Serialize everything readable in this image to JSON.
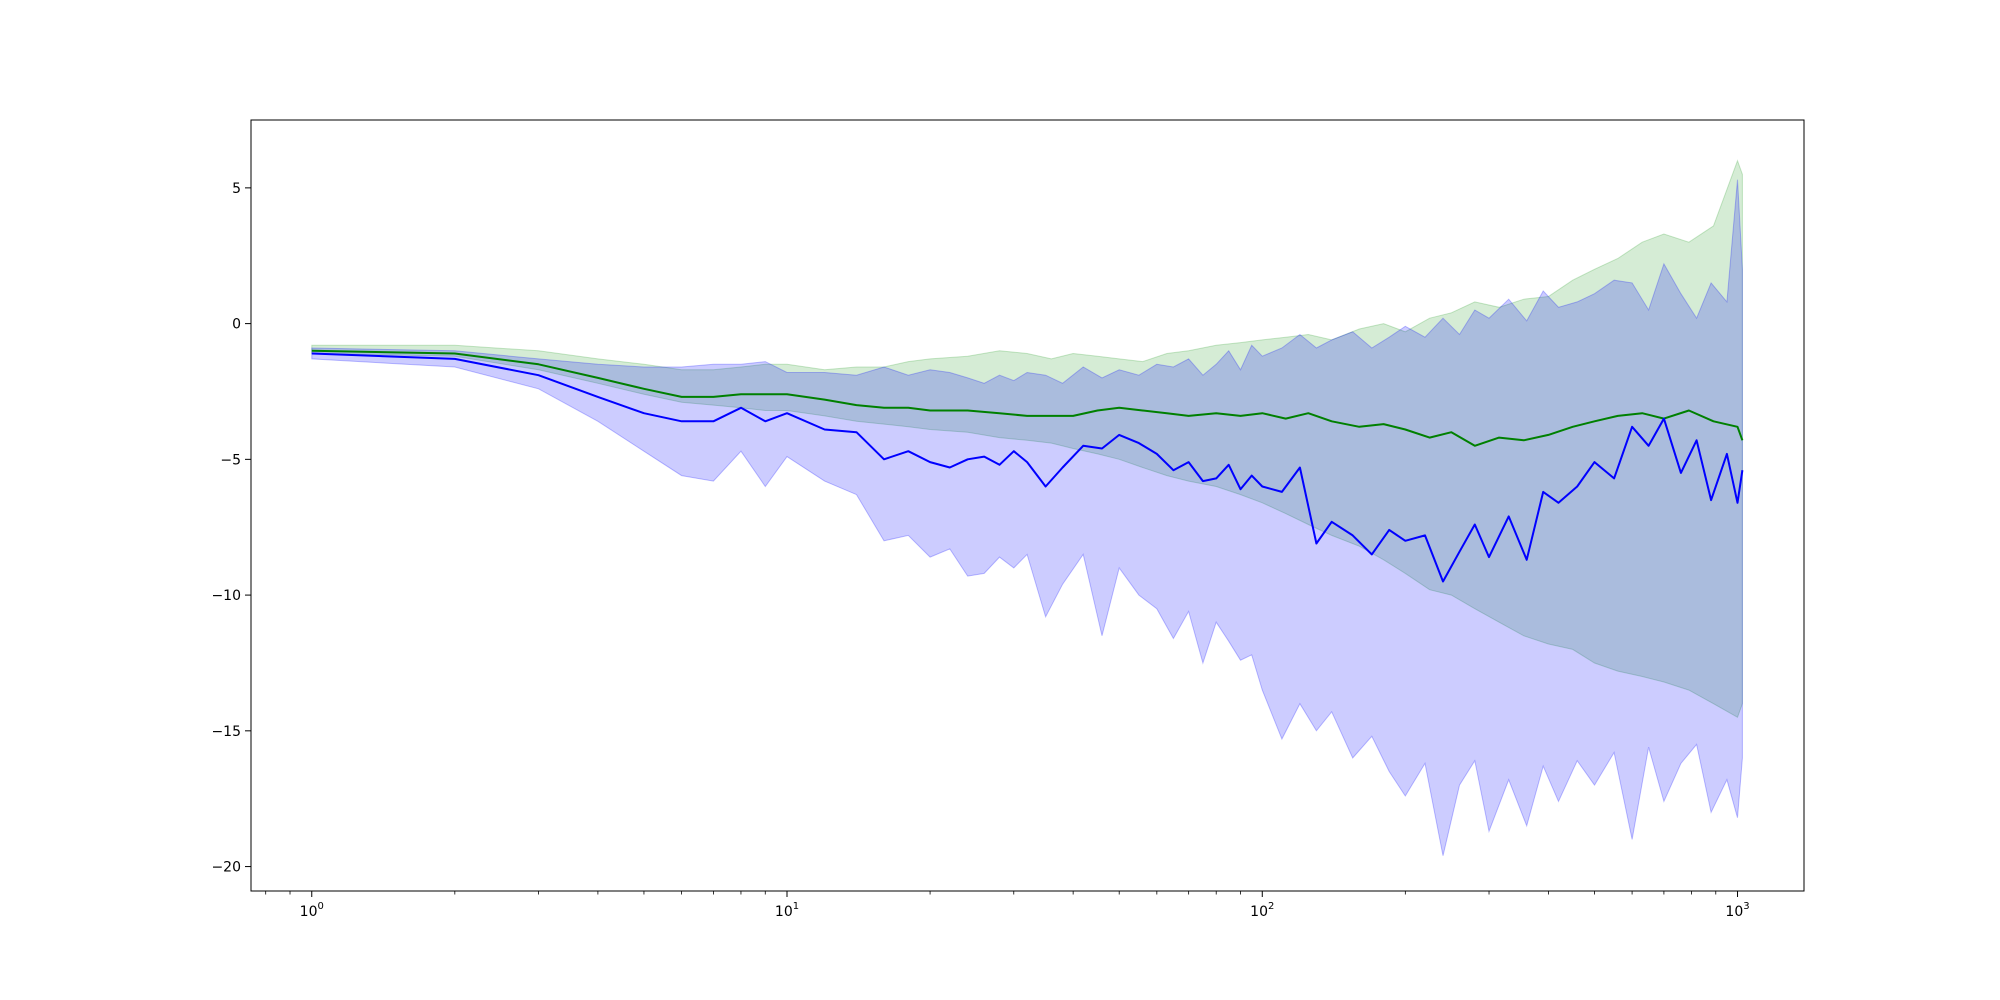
{
  "chart_data": {
    "type": "line",
    "title": "",
    "xlabel": "",
    "ylabel": "",
    "xscale": "log",
    "xlim": [
      0.745,
      1380
    ],
    "ylim": [
      -20.9,
      7.5
    ],
    "grid": false,
    "legend": "none",
    "x_ticks": [
      {
        "value": 1,
        "base": "10",
        "exp": "0"
      },
      {
        "value": 10,
        "base": "10",
        "exp": "1"
      },
      {
        "value": 100,
        "base": "10",
        "exp": "2"
      },
      {
        "value": 1000,
        "base": "10",
        "exp": "3"
      }
    ],
    "y_ticks": [
      {
        "value": 5,
        "label": "5"
      },
      {
        "value": 0,
        "label": "0"
      },
      {
        "value": -5,
        "label": "−5"
      },
      {
        "value": -10,
        "label": "−10"
      },
      {
        "value": -15,
        "label": "−15"
      },
      {
        "value": -20,
        "label": "−20"
      }
    ],
    "series": [
      {
        "color": "#008000",
        "band_color": "#2ca02c",
        "x": [
          1,
          2,
          3,
          4,
          5,
          6,
          7,
          8,
          9,
          10,
          12,
          14,
          16,
          18,
          20,
          24,
          28,
          32,
          36,
          40,
          45,
          50,
          56,
          63,
          70,
          80,
          90,
          100,
          112,
          125,
          140,
          160,
          180,
          200,
          225,
          250,
          280,
          315,
          355,
          400,
          450,
          500,
          560,
          630,
          700,
          790,
          890,
          1000,
          1024
        ],
        "y": [
          -1.0,
          -1.1,
          -1.5,
          -2.0,
          -2.4,
          -2.7,
          -2.7,
          -2.6,
          -2.6,
          -2.6,
          -2.8,
          -3.0,
          -3.1,
          -3.1,
          -3.2,
          -3.2,
          -3.3,
          -3.4,
          -3.4,
          -3.4,
          -3.2,
          -3.1,
          -3.2,
          -3.3,
          -3.4,
          -3.3,
          -3.4,
          -3.3,
          -3.5,
          -3.3,
          -3.6,
          -3.8,
          -3.7,
          -3.9,
          -4.2,
          -4.0,
          -4.5,
          -4.2,
          -4.3,
          -4.1,
          -3.8,
          -3.6,
          -3.4,
          -3.3,
          -3.5,
          -3.2,
          -3.6,
          -3.8,
          -4.3
        ],
        "upper": [
          -0.8,
          -0.8,
          -1.0,
          -1.3,
          -1.5,
          -1.7,
          -1.7,
          -1.6,
          -1.5,
          -1.5,
          -1.7,
          -1.6,
          -1.6,
          -1.4,
          -1.3,
          -1.2,
          -1.0,
          -1.1,
          -1.3,
          -1.1,
          -1.2,
          -1.3,
          -1.4,
          -1.1,
          -1.0,
          -0.8,
          -0.7,
          -0.6,
          -0.5,
          -0.4,
          -0.6,
          -0.2,
          0.0,
          -0.3,
          0.2,
          0.4,
          0.8,
          0.6,
          0.9,
          1.0,
          1.6,
          2.0,
          2.4,
          3.0,
          3.3,
          3.0,
          3.6,
          6.0,
          5.5
        ],
        "lower": [
          -1.1,
          -1.2,
          -1.7,
          -2.2,
          -2.6,
          -2.9,
          -3.0,
          -3.1,
          -3.2,
          -3.2,
          -3.4,
          -3.6,
          -3.7,
          -3.8,
          -3.9,
          -4.0,
          -4.2,
          -4.3,
          -4.4,
          -4.6,
          -4.8,
          -5.0,
          -5.3,
          -5.6,
          -5.8,
          -6.0,
          -6.3,
          -6.6,
          -7.0,
          -7.4,
          -7.8,
          -8.2,
          -8.7,
          -9.2,
          -9.8,
          -10.0,
          -10.5,
          -11.0,
          -11.5,
          -11.8,
          -12.0,
          -12.5,
          -12.8,
          -13.0,
          -13.2,
          -13.5,
          -14.0,
          -14.5,
          -14.0
        ]
      },
      {
        "color": "#0000ff",
        "band_color": "#0000ff",
        "x": [
          1,
          2,
          3,
          4,
          5,
          6,
          7,
          8,
          9,
          10,
          12,
          14,
          16,
          18,
          20,
          22,
          24,
          26,
          28,
          30,
          32,
          35,
          38,
          42,
          46,
          50,
          55,
          60,
          65,
          70,
          75,
          80,
          85,
          90,
          95,
          100,
          110,
          120,
          130,
          140,
          155,
          170,
          185,
          200,
          220,
          240,
          260,
          280,
          300,
          330,
          360,
          390,
          420,
          460,
          500,
          550,
          600,
          650,
          700,
          760,
          820,
          880,
          950,
          1000,
          1024
        ],
        "y": [
          -1.1,
          -1.3,
          -1.9,
          -2.7,
          -3.3,
          -3.6,
          -3.6,
          -3.1,
          -3.6,
          -3.3,
          -3.9,
          -4.0,
          -5.0,
          -4.7,
          -5.1,
          -5.3,
          -5.0,
          -4.9,
          -5.2,
          -4.7,
          -5.1,
          -6.0,
          -5.3,
          -4.5,
          -4.6,
          -4.1,
          -4.4,
          -4.8,
          -5.4,
          -5.1,
          -5.8,
          -5.7,
          -5.2,
          -6.1,
          -5.6,
          -6.0,
          -6.2,
          -5.3,
          -8.1,
          -7.3,
          -7.8,
          -8.5,
          -7.6,
          -8.0,
          -7.8,
          -9.5,
          -8.4,
          -7.4,
          -8.6,
          -7.1,
          -8.7,
          -6.2,
          -6.6,
          -6.0,
          -5.1,
          -5.7,
          -3.8,
          -4.5,
          -3.5,
          -5.5,
          -4.3,
          -6.5,
          -4.8,
          -6.6,
          -5.4
        ],
        "upper": [
          -0.9,
          -1.0,
          -1.3,
          -1.5,
          -1.6,
          -1.6,
          -1.5,
          -1.5,
          -1.4,
          -1.8,
          -1.8,
          -1.9,
          -1.6,
          -1.9,
          -1.7,
          -1.8,
          -2.0,
          -2.2,
          -1.9,
          -2.1,
          -1.8,
          -1.9,
          -2.2,
          -1.6,
          -2.0,
          -1.7,
          -1.9,
          -1.5,
          -1.6,
          -1.3,
          -1.9,
          -1.5,
          -1.0,
          -1.7,
          -0.8,
          -1.2,
          -0.9,
          -0.4,
          -0.9,
          -0.6,
          -0.3,
          -0.9,
          -0.5,
          -0.1,
          -0.5,
          0.2,
          -0.4,
          0.5,
          0.2,
          0.9,
          0.1,
          1.2,
          0.6,
          0.8,
          1.1,
          1.6,
          1.5,
          0.5,
          2.2,
          1.1,
          0.2,
          1.5,
          0.8,
          5.3,
          2.0
        ],
        "lower": [
          -1.3,
          -1.6,
          -2.4,
          -3.6,
          -4.7,
          -5.6,
          -5.8,
          -4.7,
          -6.0,
          -4.9,
          -5.8,
          -6.3,
          -8.0,
          -7.8,
          -8.6,
          -8.3,
          -9.3,
          -9.2,
          -8.6,
          -9.0,
          -8.5,
          -10.8,
          -9.6,
          -8.5,
          -11.5,
          -9.0,
          -10.0,
          -10.5,
          -11.6,
          -10.6,
          -12.5,
          -11.0,
          -11.7,
          -12.4,
          -12.2,
          -13.5,
          -15.3,
          -14.0,
          -15.0,
          -14.3,
          -16.0,
          -15.2,
          -16.5,
          -17.4,
          -16.2,
          -19.6,
          -17.0,
          -16.1,
          -18.7,
          -16.8,
          -18.5,
          -16.3,
          -17.6,
          -16.1,
          -17.0,
          -15.8,
          -19.0,
          -15.6,
          -17.6,
          -16.2,
          -15.5,
          -18.0,
          -16.8,
          -18.2,
          -16.0
        ]
      }
    ]
  }
}
